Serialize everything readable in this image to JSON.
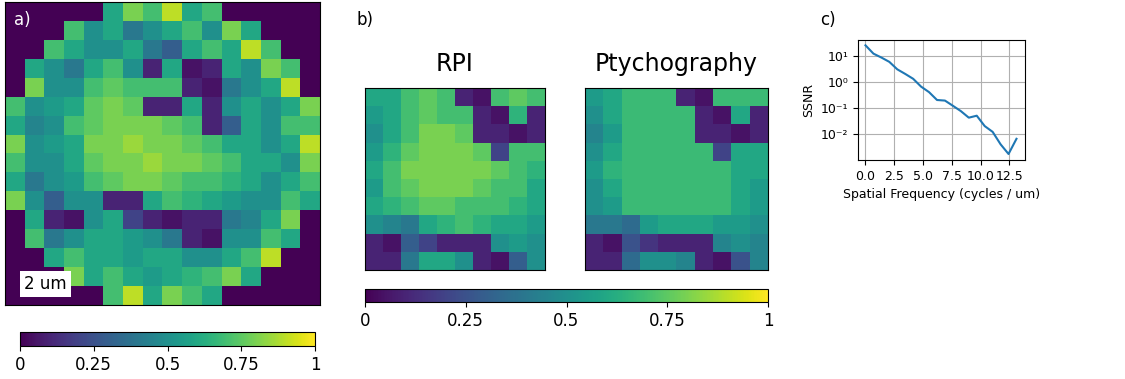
{
  "chart_data": [
    {
      "type": "heatmap",
      "panel": "a)",
      "scale_bar": "2 um",
      "color": "viridis",
      "colorbar_range": [
        0,
        1
      ],
      "colorbar_ticks": [
        0,
        0.25,
        0.5,
        0.75,
        1
      ],
      "cells": [
        [
          0,
          0,
          0,
          0,
          0,
          0.6,
          0.8,
          0.7,
          0.9,
          0.6,
          0.7,
          0,
          0,
          0,
          0,
          0
        ],
        [
          0,
          0,
          0,
          0.7,
          0.5,
          0.6,
          0.4,
          0.5,
          0.6,
          0.7,
          0.5,
          0.8,
          0.6,
          0,
          0,
          0
        ],
        [
          0,
          0,
          0.7,
          0.6,
          0.5,
          0.5,
          0.6,
          0.4,
          0.3,
          0.6,
          0.7,
          0.6,
          0.9,
          0.7,
          0,
          0
        ],
        [
          0,
          0.6,
          0.5,
          0.4,
          0.6,
          0.7,
          0.5,
          0.1,
          0.6,
          0.05,
          0.1,
          0.6,
          0.5,
          0.8,
          0.7,
          0
        ],
        [
          0,
          0.8,
          0.5,
          0.5,
          0.7,
          0.75,
          0.7,
          0.7,
          0.7,
          0.1,
          0.05,
          0.4,
          0.5,
          0.6,
          0.9,
          0
        ],
        [
          0.7,
          0.5,
          0.55,
          0.6,
          0.75,
          0.8,
          0.75,
          0.1,
          0.1,
          0.6,
          0.1,
          0.5,
          0.6,
          0.5,
          0.6,
          0.8
        ],
        [
          0.6,
          0.45,
          0.5,
          0.7,
          0.75,
          0.8,
          0.8,
          0.8,
          0.75,
          0.7,
          0.1,
          0.3,
          0.6,
          0.5,
          0.7,
          0.7
        ],
        [
          0.8,
          0.5,
          0.55,
          0.6,
          0.8,
          0.8,
          0.85,
          0.8,
          0.8,
          0.75,
          0.7,
          0.6,
          0.6,
          0.5,
          0.6,
          0.9
        ],
        [
          0.7,
          0.5,
          0.5,
          0.6,
          0.75,
          0.8,
          0.8,
          0.85,
          0.8,
          0.8,
          0.75,
          0.7,
          0.6,
          0.6,
          0.5,
          0.8
        ],
        [
          0.6,
          0.4,
          0.5,
          0.55,
          0.7,
          0.75,
          0.8,
          0.8,
          0.75,
          0.7,
          0.7,
          0.65,
          0.6,
          0.5,
          0.6,
          0.7
        ],
        [
          0.8,
          0.5,
          0.3,
          0.5,
          0.5,
          0.1,
          0.1,
          0.6,
          0.7,
          0.65,
          0.6,
          0.55,
          0.5,
          0.5,
          0.7,
          0.6
        ],
        [
          0,
          0.6,
          0.1,
          0.05,
          0.5,
          0.6,
          0.2,
          0.1,
          0.05,
          0.1,
          0.1,
          0.4,
          0.45,
          0.6,
          0.8,
          0
        ],
        [
          0,
          0.7,
          0.4,
          0.5,
          0.6,
          0.6,
          0.55,
          0.5,
          0.4,
          0.1,
          0.05,
          0.5,
          0.5,
          0.7,
          0.6,
          0
        ],
        [
          0,
          0,
          0.6,
          0.7,
          0.6,
          0.6,
          0.55,
          0.6,
          0.6,
          0.5,
          0.5,
          0.6,
          0.7,
          0.9,
          0,
          0
        ],
        [
          0,
          0,
          0,
          0.8,
          0.6,
          0.7,
          0.6,
          0.55,
          0.6,
          0.65,
          0.7,
          0.8,
          0.6,
          0,
          0,
          0
        ],
        [
          0,
          0,
          0,
          0,
          0,
          0.7,
          0.9,
          0.6,
          0.8,
          0.7,
          0.6,
          0,
          0,
          0,
          0,
          0
        ]
      ]
    },
    {
      "type": "heatmap",
      "panel": "b)",
      "color": "viridis",
      "colorbar_range": [
        0,
        1
      ],
      "colorbar_ticks": [
        0,
        0.25,
        0.5,
        0.75,
        1
      ],
      "series": [
        {
          "name": "RPI",
          "cells": [
            [
              0.6,
              0.6,
              0.7,
              0.75,
              0.7,
              0.1,
              0.05,
              0.7,
              0.75,
              0.7
            ],
            [
              0.55,
              0.6,
              0.7,
              0.75,
              0.7,
              0.7,
              0.1,
              0.05,
              0.65,
              0.1
            ],
            [
              0.5,
              0.6,
              0.7,
              0.8,
              0.8,
              0.75,
              0.1,
              0.1,
              0.05,
              0.1
            ],
            [
              0.55,
              0.65,
              0.75,
              0.8,
              0.8,
              0.8,
              0.75,
              0.2,
              0.7,
              0.7
            ],
            [
              0.6,
              0.7,
              0.8,
              0.8,
              0.8,
              0.8,
              0.8,
              0.75,
              0.7,
              0.65
            ],
            [
              0.55,
              0.7,
              0.75,
              0.8,
              0.8,
              0.8,
              0.75,
              0.7,
              0.7,
              0.6
            ],
            [
              0.6,
              0.65,
              0.7,
              0.75,
              0.75,
              0.7,
              0.7,
              0.7,
              0.65,
              0.6
            ],
            [
              0.5,
              0.45,
              0.4,
              0.6,
              0.65,
              0.7,
              0.65,
              0.6,
              0.6,
              0.55
            ],
            [
              0.1,
              0.05,
              0.3,
              0.2,
              0.1,
              0.1,
              0.1,
              0.5,
              0.55,
              0.5
            ],
            [
              0.1,
              0.1,
              0.4,
              0.6,
              0.6,
              0.5,
              0.1,
              0.05,
              0.3,
              0.5
            ]
          ]
        },
        {
          "name": "Ptychography",
          "cells": [
            [
              0.55,
              0.6,
              0.68,
              0.68,
              0.68,
              0.1,
              0.05,
              0.68,
              0.68,
              0.68
            ],
            [
              0.5,
              0.6,
              0.68,
              0.68,
              0.68,
              0.68,
              0.1,
              0.05,
              0.6,
              0.1
            ],
            [
              0.45,
              0.55,
              0.68,
              0.68,
              0.68,
              0.68,
              0.1,
              0.1,
              0.05,
              0.1
            ],
            [
              0.5,
              0.6,
              0.68,
              0.68,
              0.68,
              0.68,
              0.68,
              0.2,
              0.6,
              0.6
            ],
            [
              0.55,
              0.65,
              0.68,
              0.68,
              0.68,
              0.68,
              0.68,
              0.68,
              0.6,
              0.6
            ],
            [
              0.5,
              0.6,
              0.68,
              0.68,
              0.68,
              0.68,
              0.68,
              0.68,
              0.6,
              0.55
            ],
            [
              0.5,
              0.55,
              0.68,
              0.68,
              0.68,
              0.68,
              0.68,
              0.68,
              0.6,
              0.55
            ],
            [
              0.4,
              0.4,
              0.35,
              0.55,
              0.6,
              0.6,
              0.6,
              0.55,
              0.55,
              0.5
            ],
            [
              0.1,
              0.05,
              0.25,
              0.15,
              0.1,
              0.1,
              0.1,
              0.45,
              0.5,
              0.45
            ],
            [
              0.1,
              0.1,
              0.35,
              0.5,
              0.5,
              0.45,
              0.1,
              0.05,
              0.25,
              0.45
            ]
          ]
        }
      ]
    },
    {
      "type": "line",
      "panel": "c)",
      "color": "#1f77b4",
      "log": "y",
      "grid": true,
      "x_label": "Spatial Frequency (cycles / um)",
      "y_label": "SSNR",
      "x": [
        0,
        0.69,
        1.38,
        2.07,
        2.76,
        3.45,
        4.14,
        4.83,
        5.52,
        6.21,
        6.9,
        7.59,
        8.28,
        8.97,
        9.66,
        10.35,
        11.04,
        11.73,
        12.42,
        13.11
      ],
      "values": [
        25,
        12,
        8.5,
        5.8,
        3.0,
        2.0,
        1.3,
        0.65,
        0.4,
        0.2,
        0.19,
        0.12,
        0.075,
        0.042,
        0.05,
        0.02,
        0.012,
        0.004,
        0.0017,
        0.0065
      ],
      "xlim": [
        -0.65,
        13.85
      ],
      "ylim": [
        0.001,
        40
      ],
      "xticks": [
        {
          "value": 0,
          "label": "0.0"
        },
        {
          "value": 2.5,
          "label": "2.5"
        },
        {
          "value": 5,
          "label": "5.0"
        },
        {
          "value": 7.5,
          "label": "7.5"
        },
        {
          "value": 10,
          "label": "10.0"
        },
        {
          "value": 12.5,
          "label": "12.5"
        }
      ],
      "yticks": [
        {
          "value": 0.01,
          "label": "10⁻²"
        },
        {
          "value": 0.1,
          "label": "10⁻¹"
        },
        {
          "value": 1,
          "label": "10⁰"
        },
        {
          "value": 10,
          "label": "10¹"
        }
      ]
    }
  ]
}
